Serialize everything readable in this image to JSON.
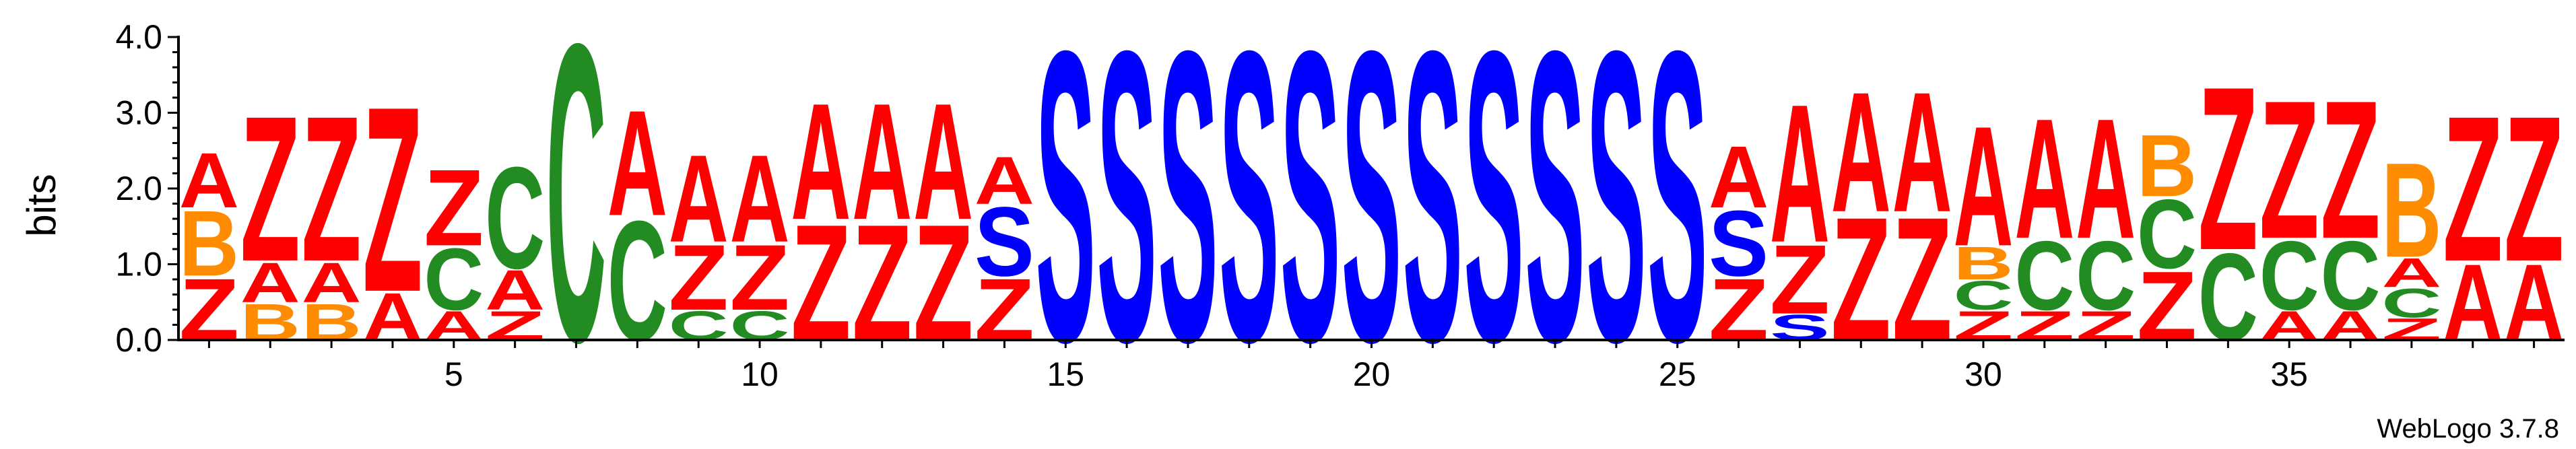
{
  "chart_data": {
    "type": "sequence-logo",
    "ylabel": "bits",
    "ylim": [
      0,
      4.0
    ],
    "y_ticks": [
      "0.0",
      "1.0",
      "2.0",
      "3.0",
      "4.0"
    ],
    "x_ticks": [
      5,
      10,
      15,
      20,
      25,
      30,
      35
    ],
    "colors": {
      "A": "#ff0000",
      "Z": "#ff0000",
      "B": "#ff8c00",
      "C": "#228b22",
      "S": "#0000ff"
    },
    "positions": [
      {
        "pos": 1,
        "stack": [
          [
            "Z",
            0.85
          ],
          [
            "B",
            0.9
          ],
          [
            "A",
            0.75
          ]
        ]
      },
      {
        "pos": 2,
        "stack": [
          [
            "B",
            0.5
          ],
          [
            "A",
            0.55
          ],
          [
            "Z",
            2.0
          ]
        ]
      },
      {
        "pos": 3,
        "stack": [
          [
            "B",
            0.5
          ],
          [
            "A",
            0.55
          ],
          [
            "Z",
            2.0
          ]
        ]
      },
      {
        "pos": 4,
        "stack": [
          [
            "A",
            0.65
          ],
          [
            "Z",
            2.55
          ]
        ]
      },
      {
        "pos": 5,
        "stack": [
          [
            "A",
            0.4
          ],
          [
            "C",
            0.85
          ],
          [
            "Z",
            1.05
          ]
        ]
      },
      {
        "pos": 6,
        "stack": [
          [
            "Z",
            0.4
          ],
          [
            "A",
            0.55
          ],
          [
            "C",
            1.4
          ]
        ]
      },
      {
        "pos": 7,
        "stack": [
          [
            "C",
            4.1
          ]
        ]
      },
      {
        "pos": 8,
        "stack": [
          [
            "C",
            1.65
          ],
          [
            "A",
            1.45
          ]
        ]
      },
      {
        "pos": 9,
        "stack": [
          [
            "C",
            0.4
          ],
          [
            "Z",
            0.9
          ],
          [
            "A",
            1.2
          ]
        ]
      },
      {
        "pos": 10,
        "stack": [
          [
            "C",
            0.4
          ],
          [
            "Z",
            0.9
          ],
          [
            "A",
            1.2
          ]
        ]
      },
      {
        "pos": 11,
        "stack": [
          [
            "Z",
            1.6
          ],
          [
            "A",
            1.6
          ]
        ]
      },
      {
        "pos": 12,
        "stack": [
          [
            "Z",
            1.6
          ],
          [
            "A",
            1.6
          ]
        ]
      },
      {
        "pos": 13,
        "stack": [
          [
            "Z",
            1.6
          ],
          [
            "A",
            1.6
          ]
        ]
      },
      {
        "pos": 14,
        "stack": [
          [
            "Z",
            0.85
          ],
          [
            "S",
            0.95
          ],
          [
            "A",
            0.65
          ]
        ]
      },
      {
        "pos": 15,
        "stack": [
          [
            "S",
            4.0
          ]
        ]
      },
      {
        "pos": 16,
        "stack": [
          [
            "S",
            4.0
          ]
        ]
      },
      {
        "pos": 17,
        "stack": [
          [
            "S",
            4.0
          ]
        ]
      },
      {
        "pos": 18,
        "stack": [
          [
            "S",
            4.0
          ]
        ]
      },
      {
        "pos": 19,
        "stack": [
          [
            "S",
            4.0
          ]
        ]
      },
      {
        "pos": 20,
        "stack": [
          [
            "S",
            4.0
          ]
        ]
      },
      {
        "pos": 21,
        "stack": [
          [
            "S",
            4.0
          ]
        ]
      },
      {
        "pos": 22,
        "stack": [
          [
            "S",
            4.0
          ]
        ]
      },
      {
        "pos": 23,
        "stack": [
          [
            "S",
            4.0
          ]
        ]
      },
      {
        "pos": 24,
        "stack": [
          [
            "S",
            4.0
          ]
        ]
      },
      {
        "pos": 25,
        "stack": [
          [
            "S",
            4.0
          ]
        ]
      },
      {
        "pos": 26,
        "stack": [
          [
            "Z",
            0.85
          ],
          [
            "S",
            0.9
          ],
          [
            "A",
            0.85
          ]
        ]
      },
      {
        "pos": 27,
        "stack": [
          [
            "S",
            0.35
          ],
          [
            "Z",
            0.95
          ],
          [
            "A",
            1.9
          ]
        ]
      },
      {
        "pos": 28,
        "stack": [
          [
            "Z",
            1.7
          ],
          [
            "A",
            1.65
          ]
        ]
      },
      {
        "pos": 29,
        "stack": [
          [
            "Z",
            1.7
          ],
          [
            "A",
            1.65
          ]
        ]
      },
      {
        "pos": 30,
        "stack": [
          [
            "Z",
            0.4
          ],
          [
            "C",
            0.4
          ],
          [
            "B",
            0.45
          ],
          [
            "A",
            1.65
          ]
        ]
      },
      {
        "pos": 31,
        "stack": [
          [
            "Z",
            0.4
          ],
          [
            "C",
            0.95
          ],
          [
            "A",
            1.65
          ]
        ]
      },
      {
        "pos": 32,
        "stack": [
          [
            "Z",
            0.4
          ],
          [
            "C",
            0.95
          ],
          [
            "A",
            1.65
          ]
        ]
      },
      {
        "pos": 33,
        "stack": [
          [
            "Z",
            0.95
          ],
          [
            "C",
            0.95
          ],
          [
            "B",
            0.85
          ]
        ]
      },
      {
        "pos": 34,
        "stack": [
          [
            "C",
            1.2
          ],
          [
            "Z",
            2.25
          ]
        ]
      },
      {
        "pos": 35,
        "stack": [
          [
            "A",
            0.4
          ],
          [
            "C",
            0.95
          ],
          [
            "Z",
            1.9
          ]
        ]
      },
      {
        "pos": 36,
        "stack": [
          [
            "A",
            0.4
          ],
          [
            "C",
            0.95
          ],
          [
            "Z",
            1.9
          ]
        ]
      },
      {
        "pos": 37,
        "stack": [
          [
            "Z",
            0.3
          ],
          [
            "C",
            0.4
          ],
          [
            "A",
            0.4
          ],
          [
            "B",
            1.3
          ]
        ]
      },
      {
        "pos": 38,
        "stack": [
          [
            "A",
            1.05
          ],
          [
            "Z",
            2.0
          ]
        ]
      },
      {
        "pos": 39,
        "stack": [
          [
            "A",
            1.05
          ],
          [
            "Z",
            2.0
          ]
        ]
      }
    ]
  },
  "credit": "WebLogo 3.7.8"
}
